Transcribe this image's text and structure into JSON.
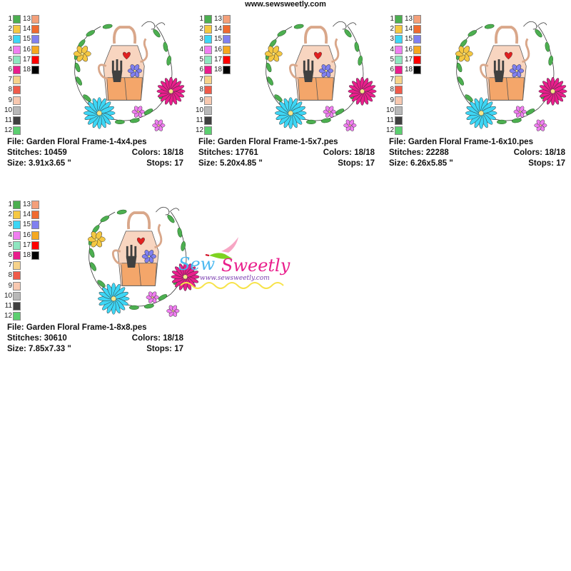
{
  "header": {
    "site_url": "www.sewsweetly.com"
  },
  "palette": [
    {
      "n": "1",
      "color": "#4caf50"
    },
    {
      "n": "2",
      "color": "#f5c842"
    },
    {
      "n": "3",
      "color": "#3dd6f5"
    },
    {
      "n": "4",
      "color": "#f07ef0"
    },
    {
      "n": "5",
      "color": "#8ee6c0"
    },
    {
      "n": "6",
      "color": "#e91e8c"
    },
    {
      "n": "7",
      "color": "#f6d28a"
    },
    {
      "n": "8",
      "color": "#f05a4a"
    },
    {
      "n": "9",
      "color": "#f8c8b0"
    },
    {
      "n": "10",
      "color": "#b8b8b8"
    },
    {
      "n": "11",
      "color": "#404040"
    },
    {
      "n": "12",
      "color": "#5ccf70"
    },
    {
      "n": "13",
      "color": "#f4a07a"
    },
    {
      "n": "14",
      "color": "#f06a30"
    },
    {
      "n": "15",
      "color": "#8080f0"
    },
    {
      "n": "16",
      "color": "#f5a820"
    },
    {
      "n": "17",
      "color": "#ff0000"
    },
    {
      "n": "18",
      "color": "#000000"
    }
  ],
  "designs": [
    {
      "file": "File: Garden Floral Frame-1-4x4.pes",
      "stitches": "Stitches: 10459",
      "colors": "Colors: 18/18",
      "size": "Size: 3.91x3.65 \"",
      "stops": "Stops: 17"
    },
    {
      "file": "File: Garden Floral Frame-1-5x7.pes",
      "stitches": "Stitches: 17761",
      "colors": "Colors: 18/18",
      "size": "Size: 5.20x4.85 \"",
      "stops": "Stops: 17"
    },
    {
      "file": "File: Garden Floral Frame-1-6x10.pes",
      "stitches": "Stitches: 22288",
      "colors": "Colors: 18/18",
      "size": "Size: 6.26x5.85 \"",
      "stops": "Stops: 17"
    },
    {
      "file": "File: Garden Floral Frame-1-8x8.pes",
      "stitches": "Stitches: 30610",
      "colors": "Colors: 18/18",
      "size": "Size: 7.85x7.33 \"",
      "stops": "Stops: 17"
    }
  ],
  "logo": {
    "brand": "Sew Sweetly",
    "url": "www.sewsweetly.com"
  }
}
